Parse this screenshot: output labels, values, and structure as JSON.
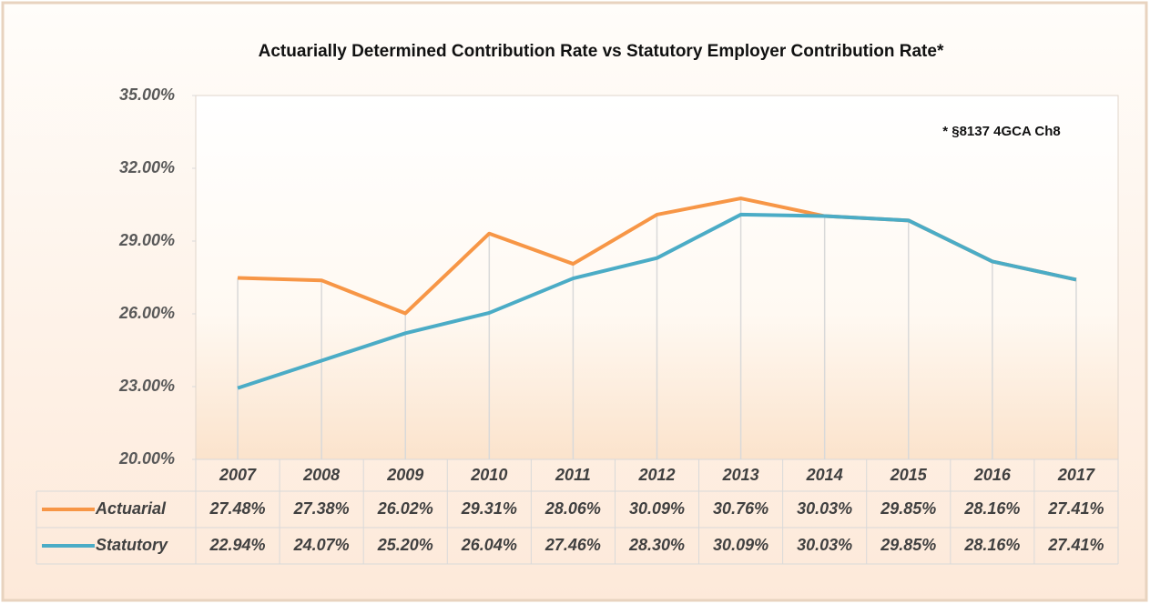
{
  "chart_data": {
    "type": "line",
    "title": "Actuarially Determined Contribution Rate vs Statutory Employer Contribution Rate*",
    "annotation": "* §8137 4GCA Ch8",
    "categories": [
      "2007",
      "2008",
      "2009",
      "2010",
      "2011",
      "2012",
      "2013",
      "2014",
      "2015",
      "2016",
      "2017"
    ],
    "series": [
      {
        "name": "Actuarial",
        "color": "#f79646",
        "values": [
          27.48,
          27.38,
          26.02,
          29.31,
          28.06,
          30.09,
          30.76,
          30.03,
          29.85,
          28.16,
          27.41
        ],
        "value_labels": [
          "27.48%",
          "27.38%",
          "26.02%",
          "29.31%",
          "28.06%",
          "30.09%",
          "30.76%",
          "30.03%",
          "29.85%",
          "28.16%",
          "27.41%"
        ]
      },
      {
        "name": "Statutory",
        "color": "#4bacc6",
        "values": [
          22.94,
          24.07,
          25.2,
          26.04,
          27.46,
          28.3,
          30.09,
          30.03,
          29.85,
          28.16,
          27.41
        ],
        "value_labels": [
          "22.94%",
          "24.07%",
          "25.20%",
          "26.04%",
          "27.46%",
          "28.30%",
          "30.09%",
          "30.03%",
          "29.85%",
          "28.16%",
          "27.41%"
        ]
      }
    ],
    "ylim": [
      20,
      35
    ],
    "yticks": [
      {
        "value": 20,
        "label": "20.00%"
      },
      {
        "value": 23,
        "label": "23.00%"
      },
      {
        "value": 26,
        "label": "26.00%"
      },
      {
        "value": 29,
        "label": "29.00%"
      },
      {
        "value": 32,
        "label": "32.00%"
      },
      {
        "value": 35,
        "label": "35.00%"
      }
    ]
  }
}
